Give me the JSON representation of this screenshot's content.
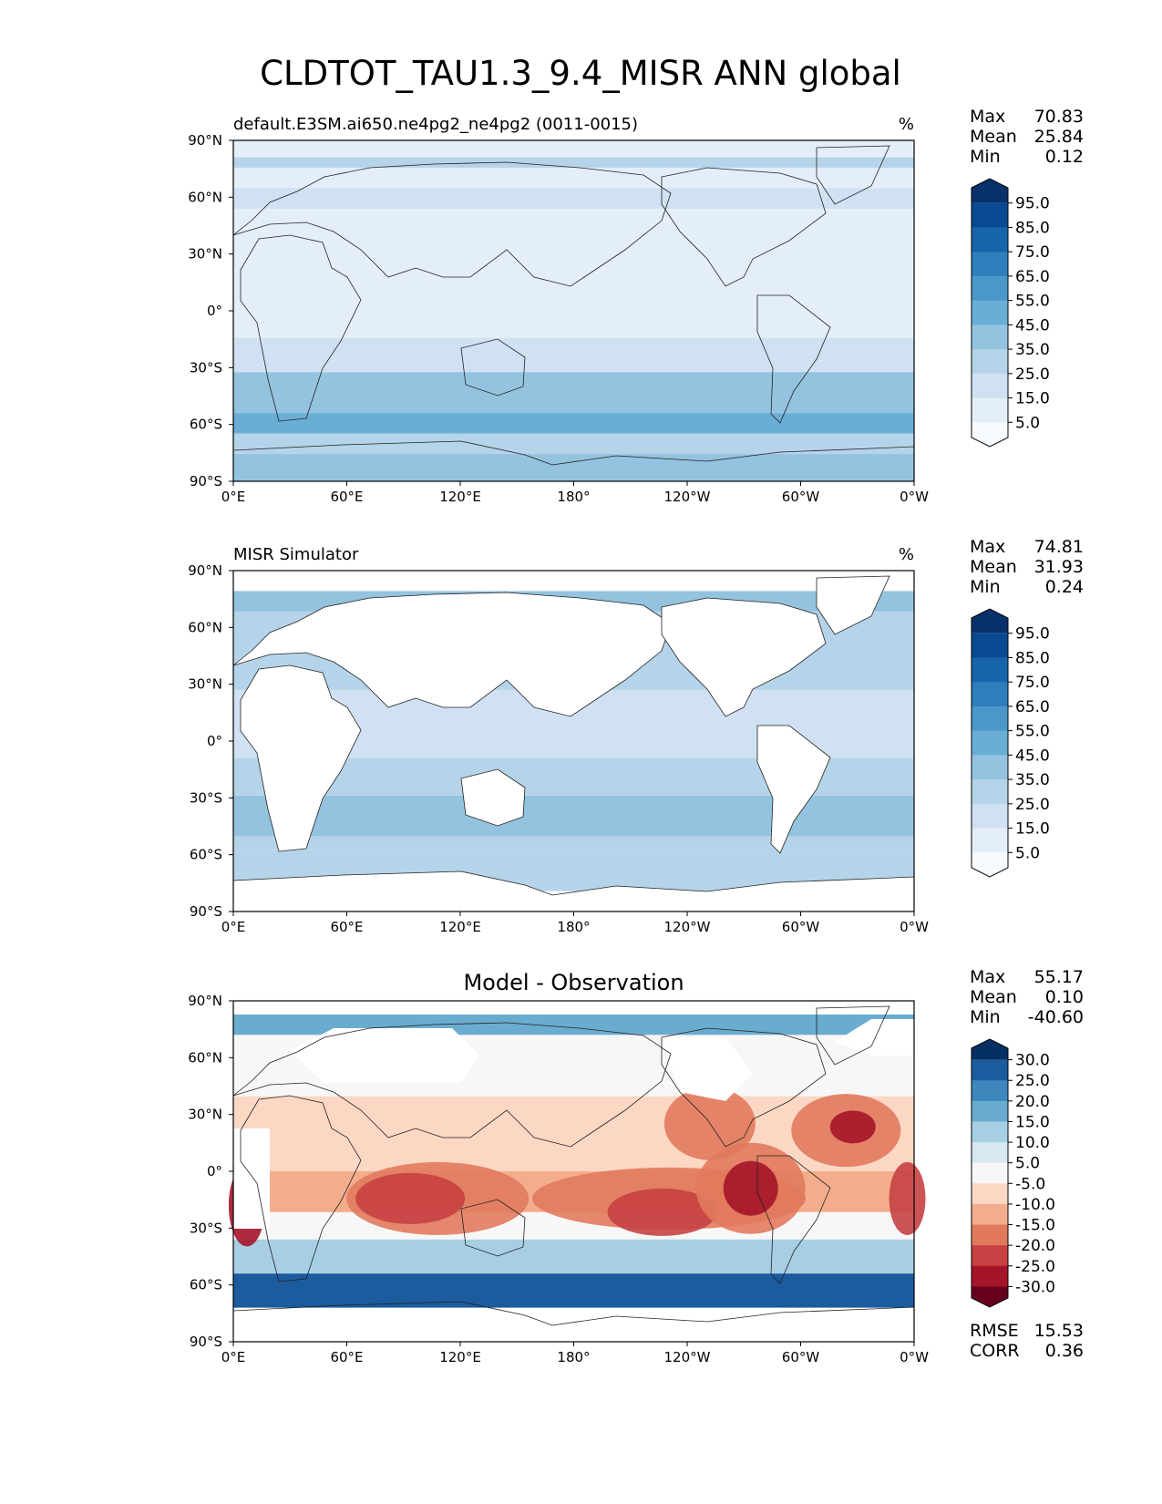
{
  "figure_title": "CLDTOT_TAU1.3_9.4_MISR ANN global",
  "x_ticks": [
    "0°E",
    "60°E",
    "120°E",
    "180°",
    "120°W",
    "60°W",
    "0°W"
  ],
  "y_ticks": [
    "90°N",
    "60°N",
    "30°N",
    "0°",
    "30°S",
    "60°S",
    "90°S"
  ],
  "panels": [
    {
      "id": "test",
      "left_title": "default.E3SM.ai650.ne4pg2_ne4pg2 (0011-0015)",
      "center_title": "",
      "right_title": "%",
      "stats": [
        {
          "label": "Max",
          "value": "70.83"
        },
        {
          "label": "Mean",
          "value": "25.84"
        },
        {
          "label": "Min",
          "value": "0.12"
        }
      ],
      "colorbar": {
        "ticks": [
          "95.0",
          "85.0",
          "75.0",
          "65.0",
          "55.0",
          "45.0",
          "35.0",
          "25.0",
          "15.0",
          "5.0"
        ],
        "colors": [
          "#f7fbff",
          "#e3eef8",
          "#cfe1f2",
          "#b5d4e9",
          "#93c3df",
          "#6aaed6",
          "#4a98c9",
          "#2e7ebc",
          "#1764ab",
          "#084a91",
          "#08306b"
        ]
      },
      "footer_stats": []
    },
    {
      "id": "reference",
      "left_title": "MISR Simulator",
      "center_title": "",
      "right_title": "%",
      "stats": [
        {
          "label": "Max",
          "value": "74.81"
        },
        {
          "label": "Mean",
          "value": "31.93"
        },
        {
          "label": "Min",
          "value": "0.24"
        }
      ],
      "colorbar": {
        "ticks": [
          "95.0",
          "85.0",
          "75.0",
          "65.0",
          "55.0",
          "45.0",
          "35.0",
          "25.0",
          "15.0",
          "5.0"
        ],
        "colors": [
          "#f7fbff",
          "#e3eef8",
          "#cfe1f2",
          "#b5d4e9",
          "#93c3df",
          "#6aaed6",
          "#4a98c9",
          "#2e7ebc",
          "#1764ab",
          "#084a91",
          "#08306b"
        ]
      },
      "footer_stats": []
    },
    {
      "id": "difference",
      "left_title": "",
      "center_title": "Model - Observation",
      "right_title": "",
      "stats": [
        {
          "label": "Max",
          "value": "55.17"
        },
        {
          "label": "Mean",
          "value": "0.10"
        },
        {
          "label": "Min",
          "value": "-40.60"
        }
      ],
      "colorbar": {
        "ticks": [
          "30.0",
          "25.0",
          "20.0",
          "15.0",
          "10.0",
          "5.0",
          "-5.0",
          "-10.0",
          "-15.0",
          "-20.0",
          "-25.0",
          "-30.0"
        ],
        "colors": [
          "#67001f",
          "#a51429",
          "#c74142",
          "#e17a5d",
          "#f4ad8c",
          "#fbd7c4",
          "#f7f7f7",
          "#d6e8f1",
          "#a7cfe4",
          "#6aacd0",
          "#3d87bc",
          "#1b5b9e",
          "#053061"
        ]
      },
      "footer_stats": [
        {
          "label": "RMSE",
          "value": "15.53"
        },
        {
          "label": "CORR",
          "value": "0.36"
        }
      ]
    }
  ]
}
